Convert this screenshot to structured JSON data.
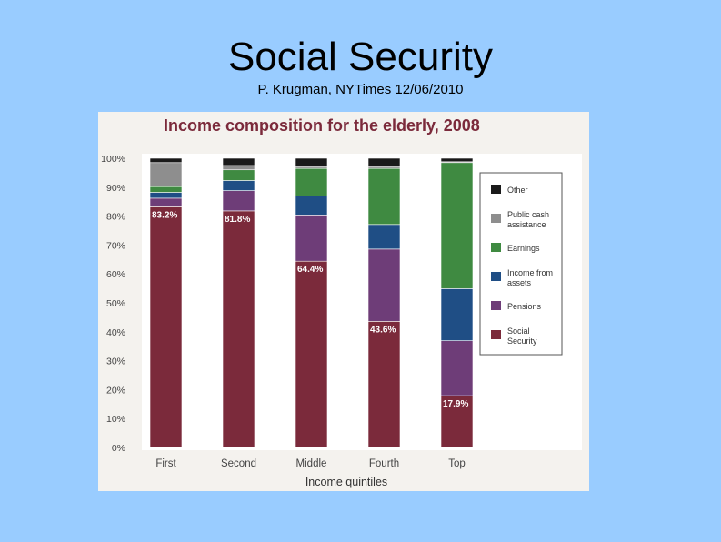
{
  "slide": {
    "title": "Social Security",
    "subtitle": "P. Krugman, NYTimes 12/06/2010"
  },
  "chart_data": {
    "type": "bar",
    "stacked": true,
    "title": "Income composition for the elderly, 2008",
    "xlabel": "Income quintiles",
    "ylabel": "",
    "ylim": [
      0,
      100
    ],
    "y_ticks": [
      "0%",
      "10%",
      "20%",
      "30%",
      "40%",
      "50%",
      "60%",
      "70%",
      "80%",
      "90%",
      "100%"
    ],
    "categories": [
      "First",
      "Second",
      "Middle",
      "Fourth",
      "Top"
    ],
    "legend_position": "right",
    "series": [
      {
        "name": "Social Security",
        "color": "#7b2a3b",
        "values": [
          83.2,
          81.8,
          64.4,
          43.6,
          17.9
        ]
      },
      {
        "name": "Pensions",
        "color": "#6e3d78",
        "values": [
          3.0,
          7.0,
          16.0,
          25.0,
          19.0
        ]
      },
      {
        "name": "Income from assets",
        "color": "#1f4e85",
        "values": [
          2.0,
          3.5,
          6.5,
          8.5,
          18.0
        ]
      },
      {
        "name": "Earnings",
        "color": "#3f8a41",
        "values": [
          2.0,
          3.7,
          9.6,
          19.4,
          43.6
        ]
      },
      {
        "name": "Public cash assistance",
        "color": "#8e8e8e",
        "values": [
          8.3,
          1.5,
          0.5,
          0.5,
          0.3
        ]
      },
      {
        "name": "Other",
        "color": "#1a1a1a",
        "values": [
          1.5,
          2.5,
          3.0,
          3.0,
          1.2
        ]
      }
    ],
    "data_labels": [
      "83.2%",
      "81.8%",
      "64.4%",
      "43.6%",
      "17.9%"
    ],
    "grid": false
  }
}
